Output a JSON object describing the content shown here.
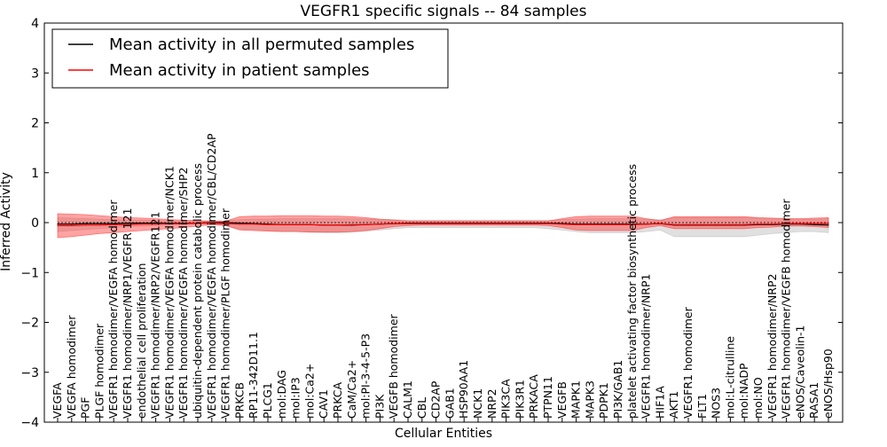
{
  "chart_data": {
    "type": "line",
    "title": "VEGFR1 specific signals -- 84 samples",
    "xlabel": "Cellular Entities",
    "ylabel": "Inferred Activity",
    "ylim": [
      -4,
      4
    ],
    "yticks": [
      "4",
      "3",
      "2",
      "1",
      "0",
      "−1",
      "−2",
      "−3",
      "−4"
    ],
    "grid": false,
    "legend_position": "top-left",
    "legend": [
      {
        "label": "Mean activity in all permuted samples",
        "color": "#000000"
      },
      {
        "label": "Mean activity in patient samples",
        "color": "#ff0000"
      }
    ],
    "categories": [
      "VEGFA",
      "VEGFA homodimer",
      "PGF",
      "PLGF homodimer",
      "VEGFR1 homodimer/VEGFA homodimer",
      "VEGFR1 homodimer/NRP1/VEGFR 121",
      "endothelial cell proliferation",
      "VEGFR1 homodimer/NRP2/VEGFR121",
      "VEGFR1 homodimer/VEGFA homodimer/NCK1",
      "VEGFR1 homodimer/VEGFA homodimer/SHP2",
      "ubiquitin-dependent protein catabolic process",
      "VEGFR1 homodimer/VEGFA homodimer/CBL/CD2AP",
      "VEGFR1 homodimer/PLGF homodimer",
      "PRKCB",
      "RP11-342D11.1",
      "PLCG1",
      "mol:DAG",
      "mol:IP3",
      "mol:Ca2+",
      "CAV1",
      "PRKCA",
      "CaM/Ca2+",
      "mol:PI-3-4-5-P3",
      "PI3K",
      "VEGFB homodimer",
      "CALM1",
      "CBL",
      "CD2AP",
      "GAB1",
      "HSP90AA1",
      "NCK1",
      "NRP2",
      "PIK3CA",
      "PIK3R1",
      "PRKACA",
      "PTPN11",
      "VEGFB",
      "MAPK1",
      "MAPK3",
      "PDPK1",
      "PI3K/GAB1",
      "platelet activating factor biosynthetic process",
      "VEGFR1 homodimer/NRP1",
      "HIF1A",
      "AKT1",
      "VEGFR1 homodimer",
      "FLT1",
      "NOS3",
      "mol:L-citrulline",
      "mol:NADP",
      "mol:NO",
      "VEGFR1 homodimer/NRP2",
      "VEGFR1 homodimer/VEGFB homodimer",
      "eNOS/Caveolin-1",
      "RASA1",
      "eNOS/Hsp90"
    ],
    "series": [
      {
        "name": "Mean activity in all permuted samples",
        "color": "#000000",
        "band_color": "#bbbbbb",
        "values": [
          -0.03,
          -0.03,
          -0.02,
          -0.02,
          -0.02,
          -0.01,
          -0.01,
          -0.01,
          -0.01,
          -0.01,
          -0.01,
          0.0,
          0.0,
          -0.01,
          -0.02,
          -0.03,
          -0.04,
          -0.04,
          -0.04,
          -0.05,
          -0.05,
          -0.05,
          -0.04,
          -0.03,
          -0.02,
          -0.01,
          -0.01,
          -0.01,
          -0.01,
          -0.01,
          -0.01,
          -0.01,
          -0.01,
          -0.01,
          -0.01,
          -0.01,
          -0.02,
          -0.03,
          -0.03,
          -0.03,
          -0.03,
          -0.03,
          -0.03,
          -0.02,
          -0.05,
          -0.05,
          -0.05,
          -0.05,
          -0.05,
          -0.05,
          -0.04,
          -0.04,
          -0.03,
          -0.03,
          -0.04,
          -0.05
        ],
        "lower": [
          -0.18,
          -0.16,
          -0.14,
          -0.12,
          -0.1,
          -0.08,
          -0.07,
          -0.06,
          -0.05,
          -0.04,
          -0.03,
          -0.02,
          -0.06,
          -0.13,
          -0.14,
          -0.16,
          -0.18,
          -0.18,
          -0.19,
          -0.2,
          -0.2,
          -0.19,
          -0.17,
          -0.15,
          -0.12,
          -0.1,
          -0.1,
          -0.1,
          -0.1,
          -0.1,
          -0.1,
          -0.1,
          -0.1,
          -0.1,
          -0.1,
          -0.12,
          -0.15,
          -0.18,
          -0.2,
          -0.2,
          -0.2,
          -0.2,
          -0.18,
          -0.15,
          -0.28,
          -0.28,
          -0.28,
          -0.28,
          -0.28,
          -0.28,
          -0.25,
          -0.22,
          -0.2,
          -0.18,
          -0.18,
          -0.2
        ],
        "upper": [
          0.1,
          0.09,
          0.08,
          0.07,
          0.06,
          0.05,
          0.05,
          0.04,
          0.03,
          0.03,
          0.02,
          0.02,
          0.03,
          0.06,
          0.07,
          0.07,
          0.08,
          0.08,
          0.08,
          0.08,
          0.08,
          0.08,
          0.07,
          0.07,
          0.06,
          0.05,
          0.05,
          0.05,
          0.05,
          0.05,
          0.05,
          0.05,
          0.05,
          0.05,
          0.05,
          0.05,
          0.06,
          0.07,
          0.08,
          0.08,
          0.08,
          0.08,
          0.07,
          0.06,
          0.1,
          0.1,
          0.1,
          0.1,
          0.1,
          0.1,
          0.09,
          0.08,
          0.08,
          0.07,
          0.07,
          0.08
        ]
      },
      {
        "name": "Mean activity in patient samples",
        "color": "#ff0000",
        "band_color": "#ff3333",
        "values": [
          -0.06,
          -0.06,
          -0.05,
          -0.05,
          -0.04,
          -0.04,
          -0.03,
          -0.03,
          -0.02,
          -0.02,
          -0.01,
          -0.01,
          -0.02,
          -0.03,
          -0.03,
          -0.04,
          -0.04,
          -0.04,
          -0.04,
          -0.05,
          -0.05,
          -0.04,
          -0.04,
          -0.03,
          -0.02,
          -0.02,
          -0.02,
          -0.02,
          -0.02,
          -0.02,
          -0.02,
          -0.02,
          -0.02,
          -0.02,
          -0.02,
          -0.02,
          -0.03,
          -0.04,
          -0.04,
          -0.04,
          -0.04,
          -0.04,
          -0.03,
          -0.02,
          -0.04,
          -0.04,
          -0.04,
          -0.04,
          -0.04,
          -0.04,
          -0.03,
          -0.03,
          -0.02,
          -0.02,
          -0.02,
          -0.02
        ],
        "lower": [
          -0.3,
          -0.28,
          -0.25,
          -0.22,
          -0.2,
          -0.18,
          -0.16,
          -0.14,
          -0.12,
          -0.1,
          -0.07,
          -0.04,
          -0.06,
          -0.15,
          -0.16,
          -0.17,
          -0.18,
          -0.18,
          -0.19,
          -0.19,
          -0.19,
          -0.18,
          -0.16,
          -0.12,
          -0.08,
          -0.06,
          -0.05,
          -0.05,
          -0.05,
          -0.05,
          -0.05,
          -0.05,
          -0.05,
          -0.05,
          -0.05,
          -0.06,
          -0.1,
          -0.15,
          -0.16,
          -0.16,
          -0.16,
          -0.16,
          -0.1,
          -0.06,
          -0.12,
          -0.12,
          -0.12,
          -0.12,
          -0.12,
          -0.12,
          -0.1,
          -0.09,
          -0.07,
          -0.07,
          -0.08,
          -0.1
        ],
        "upper": [
          0.18,
          0.17,
          0.16,
          0.14,
          0.12,
          0.1,
          0.09,
          0.08,
          0.06,
          0.05,
          0.04,
          0.03,
          0.03,
          0.12,
          0.13,
          0.13,
          0.14,
          0.14,
          0.14,
          0.13,
          0.13,
          0.12,
          0.1,
          0.07,
          0.05,
          0.03,
          0.03,
          0.03,
          0.03,
          0.03,
          0.03,
          0.03,
          0.03,
          0.03,
          0.03,
          0.03,
          0.08,
          0.12,
          0.13,
          0.13,
          0.13,
          0.13,
          0.08,
          0.04,
          0.12,
          0.12,
          0.12,
          0.12,
          0.12,
          0.12,
          0.1,
          0.09,
          0.08,
          0.08,
          0.09,
          0.1
        ]
      }
    ]
  }
}
